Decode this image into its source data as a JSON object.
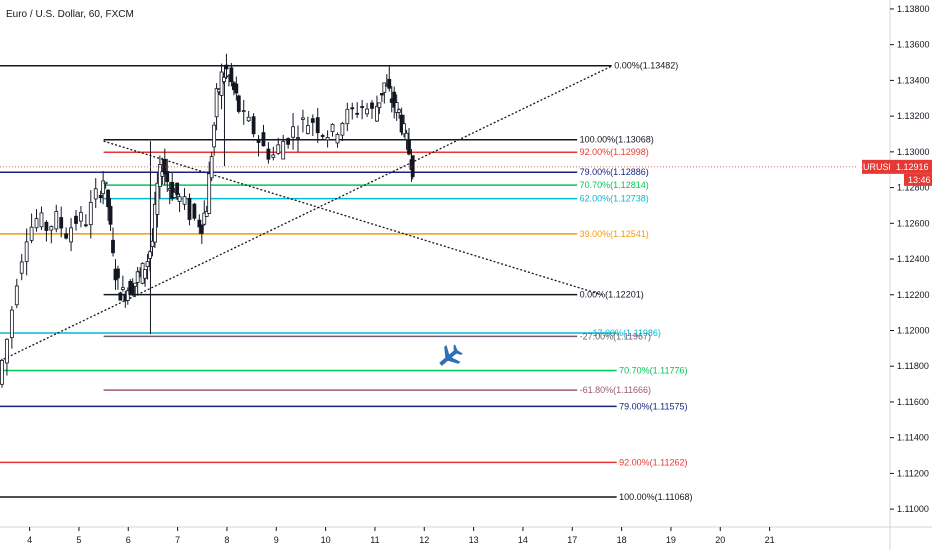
{
  "chart_title": "Euro / U.S. Dollar, 60, FXCM",
  "colors": {
    "background": "#ffffff",
    "candle_up": "#ffffff",
    "candle_down": "#131722",
    "axis_text": "#131722",
    "price_tag": "#e53935",
    "airplane": "#2f6fb7"
  },
  "chart_data": {
    "type": "candlestick",
    "symbol": "EURUSD",
    "last_price": "1.12916",
    "countdown": "13:46",
    "y_range": [
      1.109,
      1.1385
    ],
    "y_ticks": [
      "1.11000",
      "1.11200",
      "1.11400",
      "1.11600",
      "1.11800",
      "1.12000",
      "1.12200",
      "1.12400",
      "1.12600",
      "1.12800",
      "1.13000",
      "1.13200",
      "1.13400",
      "1.13600",
      "1.13800"
    ],
    "x_range": [
      3.4,
      21.4
    ],
    "x_ticks": [
      "4",
      "5",
      "6",
      "7",
      "8",
      "9",
      "10",
      "11",
      "12",
      "13",
      "14",
      "17",
      "18",
      "19",
      "20",
      "21"
    ],
    "x_tick_positions": [
      4,
      5,
      6,
      7,
      8,
      9,
      10,
      11,
      12,
      13,
      14,
      15,
      16,
      17,
      18,
      19
    ],
    "price_path": [
      [
        3.4,
        1.117
      ],
      [
        3.6,
        1.1195
      ],
      [
        3.8,
        1.123
      ],
      [
        4.0,
        1.1255
      ],
      [
        4.2,
        1.1262
      ],
      [
        4.4,
        1.1258
      ],
      [
        4.6,
        1.1262
      ],
      [
        4.8,
        1.1255
      ],
      [
        5.0,
        1.1262
      ],
      [
        5.2,
        1.1262
      ],
      [
        5.4,
        1.1275
      ],
      [
        5.5,
        1.1285
      ],
      [
        5.6,
        1.127
      ],
      [
        5.7,
        1.124
      ],
      [
        5.8,
        1.1225
      ],
      [
        5.9,
        1.122
      ],
      [
        6.0,
        1.1224
      ],
      [
        6.1,
        1.1225
      ],
      [
        6.2,
        1.123
      ],
      [
        6.3,
        1.1233
      ],
      [
        6.4,
        1.124
      ],
      [
        6.5,
        1.125
      ],
      [
        6.6,
        1.128
      ],
      [
        6.7,
        1.1294
      ],
      [
        6.8,
        1.1284
      ],
      [
        6.9,
        1.1278
      ],
      [
        7.0,
        1.1276
      ],
      [
        7.2,
        1.127
      ],
      [
        7.4,
        1.1262
      ],
      [
        7.5,
        1.126
      ],
      [
        7.6,
        1.127
      ],
      [
        7.7,
        1.13
      ],
      [
        7.8,
        1.133
      ],
      [
        7.9,
        1.1342
      ],
      [
        8.0,
        1.1345
      ],
      [
        8.1,
        1.1338
      ],
      [
        8.2,
        1.133
      ],
      [
        8.4,
        1.1318
      ],
      [
        8.6,
        1.1312
      ],
      [
        8.8,
        1.1302
      ],
      [
        9.0,
        1.1298
      ],
      [
        9.2,
        1.1306
      ],
      [
        9.4,
        1.1312
      ],
      [
        9.6,
        1.1316
      ],
      [
        9.8,
        1.1318
      ],
      [
        10.0,
        1.1312
      ],
      [
        10.2,
        1.131
      ],
      [
        10.4,
        1.1318
      ],
      [
        10.6,
        1.1322
      ],
      [
        10.8,
        1.1326
      ],
      [
        11.0,
        1.1322
      ],
      [
        11.1,
        1.133
      ],
      [
        11.2,
        1.1338
      ],
      [
        11.3,
        1.1332
      ],
      [
        11.4,
        1.1326
      ],
      [
        11.5,
        1.1322
      ],
      [
        11.6,
        1.131
      ],
      [
        11.7,
        1.13
      ],
      [
        11.75,
        1.1292
      ]
    ],
    "wicks": [
      {
        "x": 6.45,
        "high": 1.1306,
        "low": 1.1198
      },
      {
        "x": 7.95,
        "high": 1.1348,
        "low": 1.1292
      }
    ],
    "trendlines": [
      {
        "from": [
          3.4,
          1.1183
        ],
        "to": [
          15.8,
          1.1348
        ],
        "style": "dotted",
        "color": "#131722"
      },
      {
        "from": [
          5.5,
          1.1306
        ],
        "to": [
          15.6,
          1.122
        ],
        "style": "dotted",
        "color": "#131722"
      }
    ],
    "levels": [
      {
        "price": 1.13482,
        "label": "0.00%(1.13482)",
        "color": "#131722",
        "x_start": 3.4,
        "x_end": 15.8,
        "label_x": 15.85
      },
      {
        "price": 1.13068,
        "label": "100.00%(1.13068)",
        "color": "#131722",
        "x_start": 5.5,
        "x_end": 15.1,
        "label_x": 15.15
      },
      {
        "price": 1.12998,
        "label": "92.00%(1.12998)",
        "color": "#e53935",
        "x_start": 5.5,
        "x_end": 15.1,
        "label_x": 15.15
      },
      {
        "price": 1.12886,
        "label": "79.00%(1.12886)",
        "color": "#1a237e",
        "x_start": 3.4,
        "x_end": 15.1,
        "label_x": 15.15
      },
      {
        "price": 1.12814,
        "label": "70.70%(1.12814)",
        "color": "#00c853",
        "x_start": 5.5,
        "x_end": 15.1,
        "label_x": 15.15
      },
      {
        "price": 1.12738,
        "label": "62.00%(1.12738)",
        "color": "#00bcd4",
        "x_start": 5.5,
        "x_end": 15.1,
        "label_x": 15.15
      },
      {
        "price": 1.12541,
        "label": "39.00%(1.12541)",
        "color": "#f59b00",
        "x_start": 3.4,
        "x_end": 15.1,
        "label_x": 15.15
      },
      {
        "price": 1.12201,
        "label": "0.00%(1.12201)",
        "color": "#131722",
        "x_start": 5.5,
        "x_end": 15.1,
        "label_x": 15.15
      },
      {
        "price": 1.11986,
        "label": "-17.00%(1.11986)",
        "color": "#00bcd4",
        "x_start": 3.4,
        "x_end": 15.9,
        "label_x": 15.35
      },
      {
        "price": 1.11967,
        "label": "-27.00%(1.11967)",
        "color": "#6d5d6e",
        "x_start": 5.5,
        "x_end": 15.1,
        "label_x": 15.15
      },
      {
        "price": 1.11776,
        "label": "70.70%(1.11776)",
        "color": "#00c853",
        "x_start": 3.4,
        "x_end": 15.9,
        "label_x": 15.95
      },
      {
        "price": 1.11666,
        "label": "-61.80%(1.11666)",
        "color": "#9c5a6a",
        "x_start": 5.5,
        "x_end": 15.1,
        "label_x": 15.15
      },
      {
        "price": 1.11575,
        "label": "79.00%(1.11575)",
        "color": "#1a237e",
        "x_start": 3.4,
        "x_end": 15.9,
        "label_x": 15.95
      },
      {
        "price": 1.11262,
        "label": "92.00%(1.11262)",
        "color": "#e53935",
        "x_start": 3.4,
        "x_end": 15.9,
        "label_x": 15.95
      },
      {
        "price": 1.11068,
        "label": "100.00%(1.11068)",
        "color": "#131722",
        "x_start": 3.4,
        "x_end": 15.9,
        "label_x": 15.95
      }
    ],
    "airplane_marker": {
      "x": 12.5,
      "price": 1.1185
    }
  }
}
